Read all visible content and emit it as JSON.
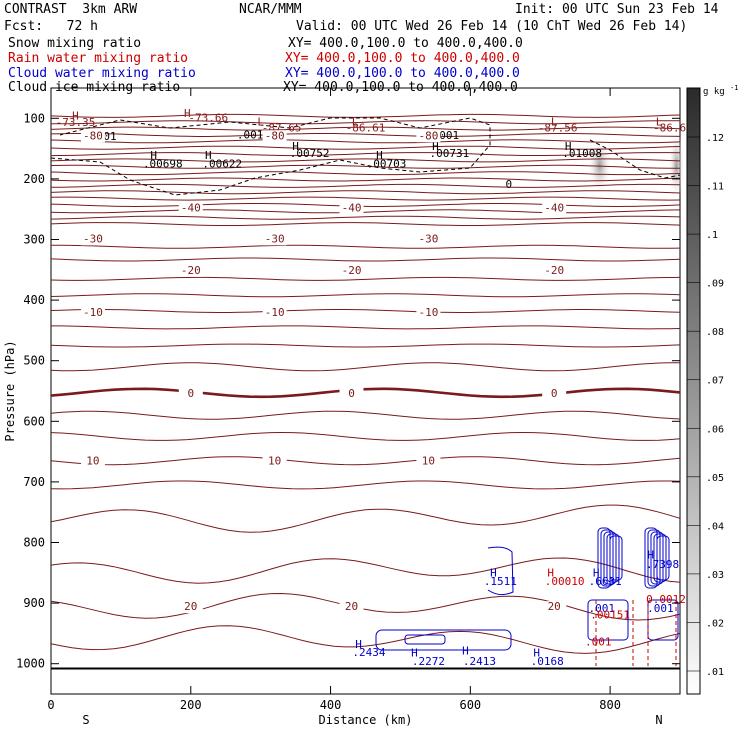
{
  "header": {
    "left": [
      "CONTRAST  3km ARW",
      "Fcst:   72 h"
    ],
    "center": "NCAR/MMM",
    "init": "Init: 00 UTC Sun 23 Feb 14",
    "valid": "Valid: 00 UTC Wed 26 Feb 14 (10 ChT Wed 26 Feb 14)",
    "fields": [
      {
        "name": "Snow mixing ratio",
        "xy": "XY= 400.0,100.0 to 400.0,400.0",
        "color": "#000000"
      },
      {
        "name": "Rain water mixing ratio",
        "xy": "XY= 400.0,100.0 to 400.0,400.0",
        "color": "#cc0000"
      },
      {
        "name": "Cloud water mixing ratio",
        "xy": "XY= 400.0,100.0 to 400.0,400.0",
        "color": "#0000cc"
      },
      {
        "name": "Cloud ice mixing ratio",
        "xy": "XY= 400.0,100.0 to 400.0,400.0",
        "color": "#000000"
      }
    ]
  },
  "chart_data": {
    "type": "contour",
    "xlabel": "Distance (km)",
    "ylabel": "Pressure (hPa)",
    "xlim": [
      0,
      900
    ],
    "ylim": [
      1050,
      50
    ],
    "xticks": [
      0,
      200,
      400,
      600,
      800
    ],
    "yticks": [
      100,
      200,
      300,
      400,
      500,
      600,
      700,
      800,
      900,
      1000
    ],
    "x_end_labels": [
      "S",
      "N"
    ],
    "colorbar": {
      "unit": "g kg",
      "unit_sup": "-1",
      "ticks": [
        ".12",
        ".11",
        ".1",
        ".09",
        ".08",
        ".07",
        ".06",
        ".05",
        ".04",
        ".03",
        ".02",
        ".01"
      ]
    },
    "temperature_contours_degC": [
      {
        "label": "-80",
        "p": 128
      },
      {
        "label": "-40",
        "p": 247
      },
      {
        "label": "-30",
        "p": 298
      },
      {
        "label": "-20",
        "p": 350
      },
      {
        "label": "-10",
        "p": 420
      },
      {
        "label": "0",
        "p": 553
      },
      {
        "label": "10",
        "p": 665
      },
      {
        "label": "20",
        "p": 905
      }
    ],
    "extrema_labels": [
      {
        "text": "H",
        "x": 35,
        "p": 102,
        "color": "#8b1a1a"
      },
      {
        "text": "-73.35",
        "x": 35,
        "p": 113,
        "color": "#8b1a1a"
      },
      {
        "text": "H",
        "x": 195,
        "p": 98,
        "color": "#8b1a1a"
      },
      {
        "text": "-73.66",
        "x": 225,
        "p": 105,
        "color": "#8b1a1a"
      },
      {
        "text": "L",
        "x": 300,
        "p": 112,
        "color": "#8b1a1a"
      },
      {
        "text": "-87.65",
        "x": 330,
        "p": 122,
        "color": "#8b1a1a"
      },
      {
        "text": "L",
        "x": 435,
        "p": 112,
        "color": "#8b1a1a"
      },
      {
        "text": "-86.61",
        "x": 450,
        "p": 122,
        "color": "#8b1a1a"
      },
      {
        "text": "L",
        "x": 720,
        "p": 112,
        "color": "#8b1a1a"
      },
      {
        "text": "-87.56",
        "x": 725,
        "p": 122,
        "color": "#8b1a1a"
      },
      {
        "text": "L",
        "x": 870,
        "p": 112,
        "color": "#8b1a1a"
      },
      {
        "text": "-86.6",
        "x": 885,
        "p": 122,
        "color": "#8b1a1a"
      },
      {
        "text": ".001",
        "x": 75,
        "p": 136,
        "color": "#000000"
      },
      {
        "text": ".001",
        "x": 285,
        "p": 133,
        "color": "#000000"
      },
      {
        "text": ".001",
        "x": 565,
        "p": 134,
        "color": "#000000"
      },
      {
        "text": "H",
        "x": 147,
        "p": 167,
        "color": "#000000"
      },
      {
        "text": ".00698",
        "x": 160,
        "p": 181,
        "color": "#000000"
      },
      {
        "text": "H",
        "x": 225,
        "p": 167,
        "color": "#000000"
      },
      {
        "text": ".00622",
        "x": 245,
        "p": 181,
        "color": "#000000"
      },
      {
        "text": "H",
        "x": 350,
        "p": 152,
        "color": "#000000"
      },
      {
        "text": ".00752",
        "x": 370,
        "p": 164,
        "color": "#000000"
      },
      {
        "text": "H",
        "x": 470,
        "p": 167,
        "color": "#000000"
      },
      {
        "text": ".00703",
        "x": 480,
        "p": 181,
        "color": "#000000"
      },
      {
        "text": "H",
        "x": 550,
        "p": 152,
        "color": "#000000"
      },
      {
        "text": ".00731",
        "x": 570,
        "p": 164,
        "color": "#000000"
      },
      {
        "text": "H",
        "x": 740,
        "p": 152,
        "color": "#000000"
      },
      {
        "text": ".01008",
        "x": 760,
        "p": 164,
        "color": "#000000"
      },
      {
        "text": "0",
        "x": 655,
        "p": 215,
        "color": "#000000"
      },
      {
        "text": "H",
        "x": 633,
        "p": 856,
        "color": "#0000cc"
      },
      {
        "text": ".1511",
        "x": 643,
        "p": 870,
        "color": "#0000cc"
      },
      {
        "text": "H",
        "x": 715,
        "p": 856,
        "color": "#cc0000"
      },
      {
        "text": ".00010",
        "x": 735,
        "p": 870,
        "color": "#cc0000"
      },
      {
        "text": "H",
        "x": 780,
        "p": 856,
        "color": "#0000cc"
      },
      {
        "text": ".6631",
        "x": 793,
        "p": 870,
        "color": "#0000cc"
      },
      {
        "text": "H",
        "x": 858,
        "p": 826,
        "color": "#0000cc"
      },
      {
        "text": ".7398",
        "x": 875,
        "p": 842,
        "color": "#0000cc"
      },
      {
        "text": ".001",
        "x": 788,
        "p": 915,
        "color": "#0000cc"
      },
      {
        "text": ".001",
        "x": 872,
        "p": 915,
        "color": "#0000cc"
      },
      {
        "text": ".00151",
        "x": 800,
        "p": 925,
        "color": "#cc0000"
      },
      {
        "text": "0.0012",
        "x": 880,
        "p": 900,
        "color": "#cc0000"
      },
      {
        "text": ".001",
        "x": 783,
        "p": 970,
        "color": "#cc0000"
      },
      {
        "text": "H",
        "x": 440,
        "p": 974,
        "color": "#0000cc"
      },
      {
        "text": ".2434",
        "x": 455,
        "p": 987,
        "color": "#0000cc"
      },
      {
        "text": "H",
        "x": 520,
        "p": 988,
        "color": "#0000cc"
      },
      {
        "text": ".2272",
        "x": 540,
        "p": 1002,
        "color": "#0000cc"
      },
      {
        "text": "H",
        "x": 593,
        "p": 985,
        "color": "#0000cc"
      },
      {
        "text": ".2413",
        "x": 613,
        "p": 1002,
        "color": "#0000cc"
      },
      {
        "text": "H",
        "x": 695,
        "p": 988,
        "color": "#0000cc"
      },
      {
        "text": ".0168",
        "x": 710,
        "p": 1002,
        "color": "#0000cc"
      }
    ]
  }
}
